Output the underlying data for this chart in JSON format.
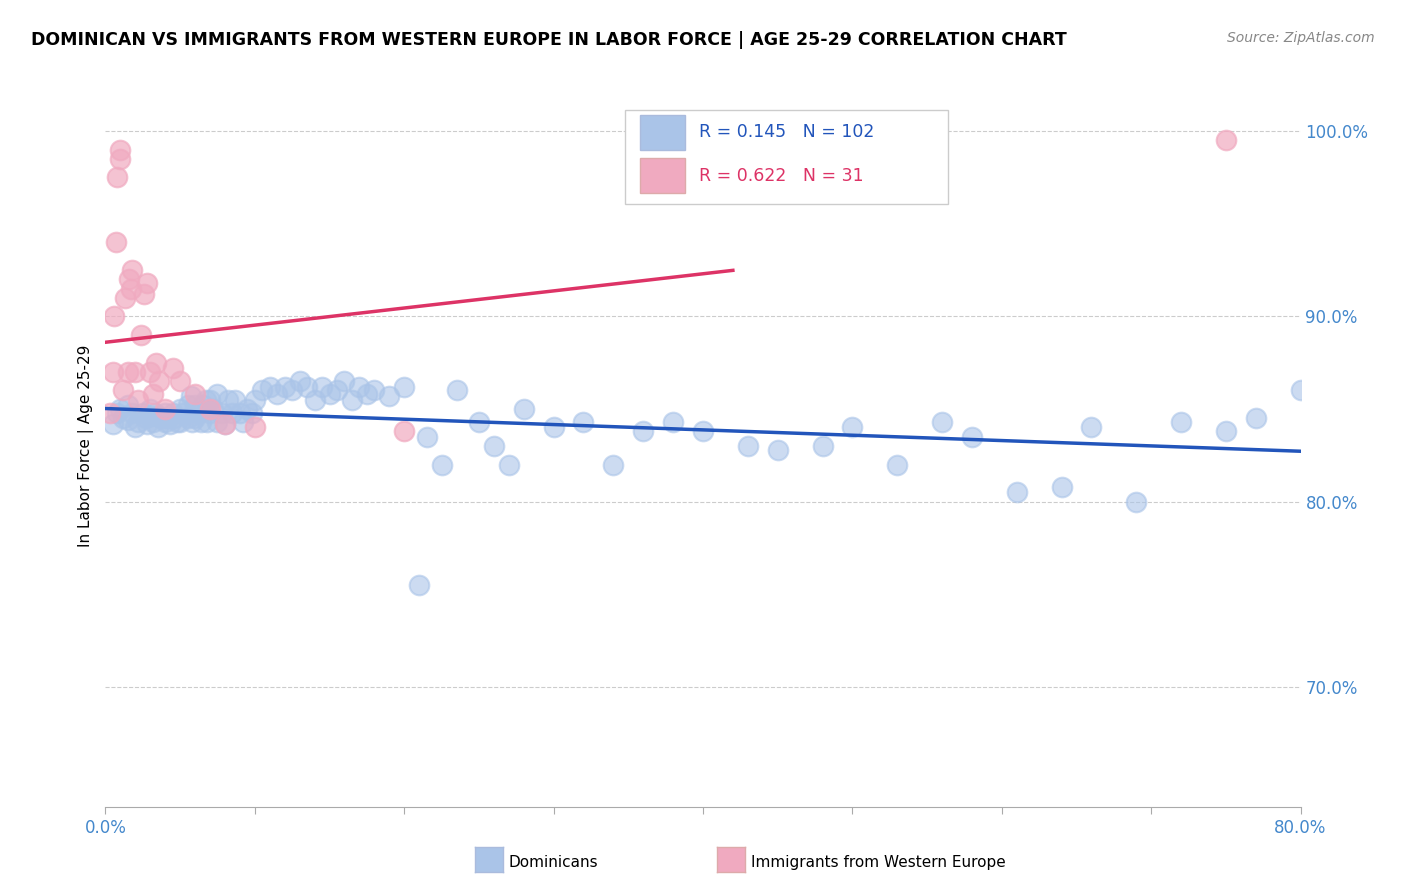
{
  "title": "DOMINICAN VS IMMIGRANTS FROM WESTERN EUROPE IN LABOR FORCE | AGE 25-29 CORRELATION CHART",
  "source": "Source: ZipAtlas.com",
  "ylabel": "In Labor Force | Age 25-29",
  "xlim": [
    0.0,
    0.8
  ],
  "ylim": [
    0.635,
    1.025
  ],
  "right_yticks": [
    0.7,
    0.8,
    0.9,
    1.0
  ],
  "right_yticklabels": [
    "70.0%",
    "80.0%",
    "90.0%",
    "100.0%"
  ],
  "xticks": [
    0.0,
    0.1,
    0.2,
    0.3,
    0.4,
    0.5,
    0.6,
    0.7,
    0.8
  ],
  "xticklabels": [
    "0.0%",
    "",
    "",
    "",
    "",
    "",
    "",
    "",
    "80.0%"
  ],
  "blue_color": "#aac4e8",
  "pink_color": "#f0aac0",
  "blue_line_color": "#2255bb",
  "pink_line_color": "#dd3366",
  "R_blue": 0.145,
  "N_blue": 102,
  "R_pink": 0.622,
  "N_pink": 31,
  "blue_scatter_x": [
    0.005,
    0.008,
    0.01,
    0.012,
    0.015,
    0.015,
    0.018,
    0.02,
    0.022,
    0.025,
    0.027,
    0.028,
    0.03,
    0.03,
    0.032,
    0.033,
    0.035,
    0.035,
    0.038,
    0.04,
    0.04,
    0.042,
    0.043,
    0.045,
    0.046,
    0.048,
    0.05,
    0.05,
    0.052,
    0.055,
    0.055,
    0.057,
    0.058,
    0.06,
    0.06,
    0.062,
    0.064,
    0.065,
    0.067,
    0.068,
    0.07,
    0.07,
    0.072,
    0.075,
    0.075,
    0.078,
    0.08,
    0.082,
    0.085,
    0.087,
    0.09,
    0.092,
    0.095,
    0.098,
    0.1,
    0.105,
    0.11,
    0.115,
    0.12,
    0.125,
    0.13,
    0.135,
    0.14,
    0.145,
    0.15,
    0.155,
    0.16,
    0.165,
    0.17,
    0.175,
    0.18,
    0.19,
    0.2,
    0.21,
    0.215,
    0.225,
    0.235,
    0.25,
    0.26,
    0.27,
    0.28,
    0.3,
    0.32,
    0.34,
    0.36,
    0.38,
    0.4,
    0.43,
    0.45,
    0.48,
    0.5,
    0.53,
    0.56,
    0.58,
    0.61,
    0.64,
    0.66,
    0.69,
    0.72,
    0.75,
    0.77,
    0.8
  ],
  "blue_scatter_y": [
    0.842,
    0.848,
    0.85,
    0.845,
    0.844,
    0.852,
    0.848,
    0.84,
    0.843,
    0.848,
    0.845,
    0.842,
    0.846,
    0.85,
    0.843,
    0.848,
    0.84,
    0.846,
    0.845,
    0.843,
    0.848,
    0.845,
    0.842,
    0.848,
    0.845,
    0.843,
    0.85,
    0.843,
    0.848,
    0.852,
    0.845,
    0.857,
    0.843,
    0.845,
    0.852,
    0.848,
    0.843,
    0.852,
    0.855,
    0.843,
    0.848,
    0.855,
    0.85,
    0.843,
    0.858,
    0.848,
    0.842,
    0.855,
    0.848,
    0.855,
    0.848,
    0.843,
    0.85,
    0.848,
    0.855,
    0.86,
    0.862,
    0.858,
    0.862,
    0.86,
    0.865,
    0.862,
    0.855,
    0.862,
    0.858,
    0.86,
    0.865,
    0.855,
    0.862,
    0.858,
    0.86,
    0.857,
    0.862,
    0.755,
    0.835,
    0.82,
    0.86,
    0.843,
    0.83,
    0.82,
    0.85,
    0.84,
    0.843,
    0.82,
    0.838,
    0.843,
    0.838,
    0.83,
    0.828,
    0.83,
    0.84,
    0.82,
    0.843,
    0.835,
    0.805,
    0.808,
    0.84,
    0.8,
    0.843,
    0.838,
    0.845,
    0.86
  ],
  "pink_scatter_x": [
    0.003,
    0.005,
    0.006,
    0.007,
    0.008,
    0.01,
    0.01,
    0.012,
    0.013,
    0.015,
    0.016,
    0.017,
    0.018,
    0.02,
    0.022,
    0.024,
    0.026,
    0.028,
    0.03,
    0.032,
    0.034,
    0.036,
    0.04,
    0.045,
    0.05,
    0.06,
    0.07,
    0.08,
    0.1,
    0.2,
    0.75
  ],
  "pink_scatter_y": [
    0.848,
    0.87,
    0.9,
    0.94,
    0.975,
    0.99,
    0.985,
    0.86,
    0.91,
    0.87,
    0.92,
    0.915,
    0.925,
    0.87,
    0.855,
    0.89,
    0.912,
    0.918,
    0.87,
    0.858,
    0.875,
    0.865,
    0.85,
    0.872,
    0.865,
    0.858,
    0.85,
    0.842,
    0.84,
    0.838,
    0.995
  ]
}
